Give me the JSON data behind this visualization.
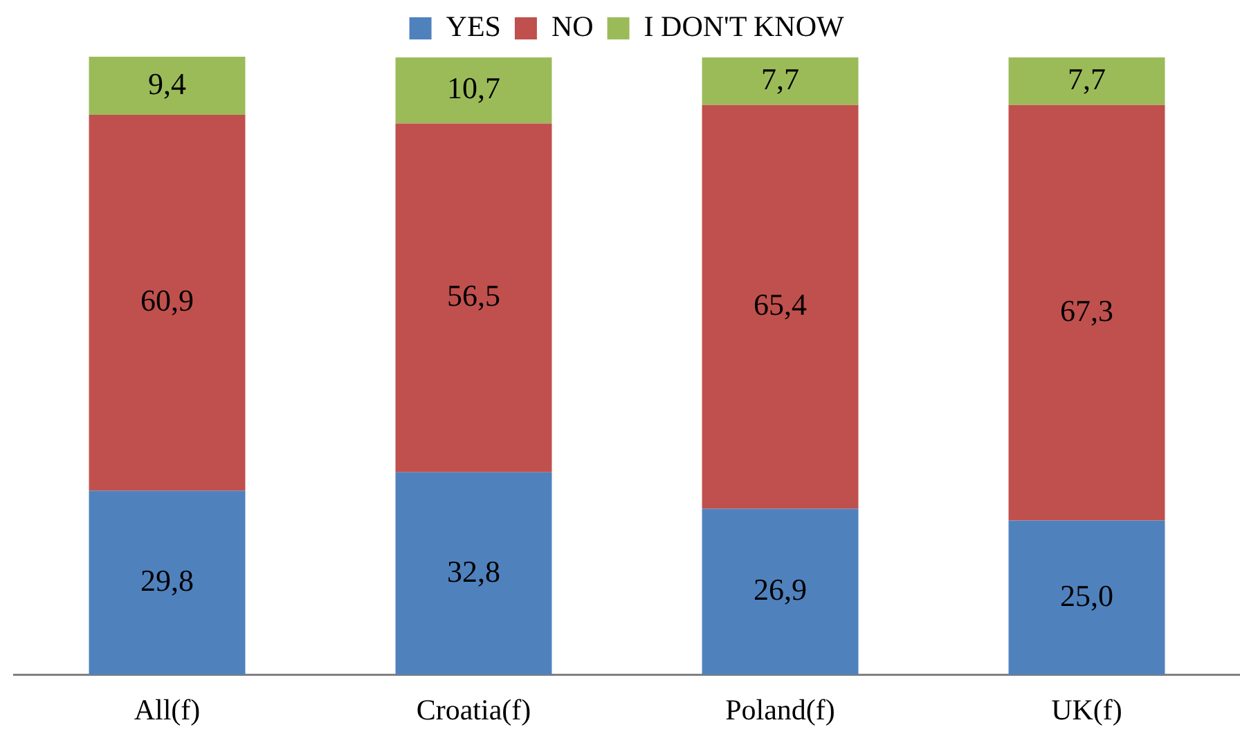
{
  "chart_data": {
    "type": "bar",
    "stacked": true,
    "legend": "top",
    "grid": false,
    "categories": [
      "All(f)",
      "Croatia(f)",
      "Poland(f)",
      "UK(f)"
    ],
    "series": [
      {
        "name": "YES",
        "color": "#4f81bd",
        "values": [
          29.8,
          32.8,
          26.9,
          25.0
        ],
        "value_labels": [
          "29,8",
          "32,8",
          "26,9",
          "25,0"
        ]
      },
      {
        "name": "NO",
        "color": "#c0504d",
        "values": [
          60.9,
          56.5,
          65.4,
          67.3
        ],
        "value_labels": [
          "60,9",
          "56,5",
          "65,4",
          "67,3"
        ]
      },
      {
        "name": "I DON'T KNOW",
        "color": "#9bbb59",
        "values": [
          9.4,
          10.7,
          7.7,
          7.7
        ],
        "value_labels": [
          "9,4",
          "10,7",
          "7,7",
          "7,7"
        ]
      }
    ]
  }
}
